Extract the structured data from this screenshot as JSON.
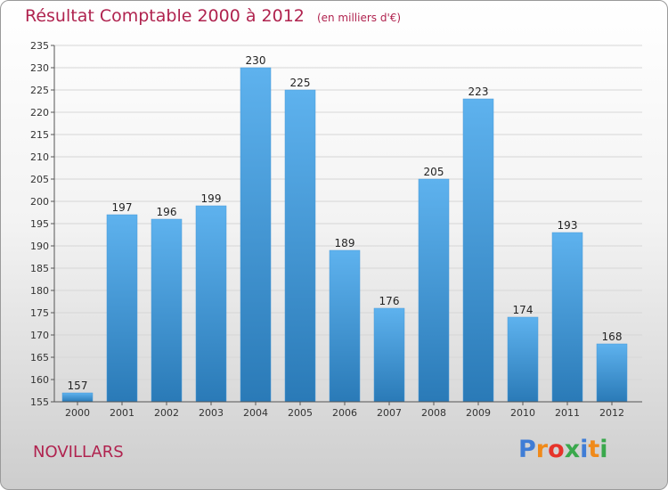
{
  "page": {
    "title": "Résultat Comptable 2000 à 2012",
    "unit": "(en milliers d'€)",
    "commune": "NOVILLARS",
    "logo": {
      "p1": "P",
      "p2": "r",
      "p3": "o",
      "p4": "x",
      "p5": "i",
      "p6": "t",
      "p7": "i"
    }
  },
  "colors": {
    "title": "#b0234f",
    "bar_top": "#5eb2ee",
    "bar_bottom": "#2a7ab7"
  },
  "chart_data": {
    "type": "bar",
    "title": "Résultat Comptable 2000 à 2012",
    "xlabel": "",
    "ylabel": "",
    "categories": [
      "2000",
      "2001",
      "2002",
      "2003",
      "2004",
      "2005",
      "2006",
      "2007",
      "2008",
      "2009",
      "2010",
      "2011",
      "2012"
    ],
    "values": [
      157,
      197,
      196,
      199,
      230,
      225,
      189,
      176,
      205,
      223,
      174,
      193,
      168
    ],
    "ylim": [
      155,
      235
    ],
    "yticks": [
      155,
      160,
      165,
      170,
      175,
      180,
      185,
      190,
      195,
      200,
      205,
      210,
      215,
      220,
      225,
      230,
      235
    ],
    "grid": true
  }
}
